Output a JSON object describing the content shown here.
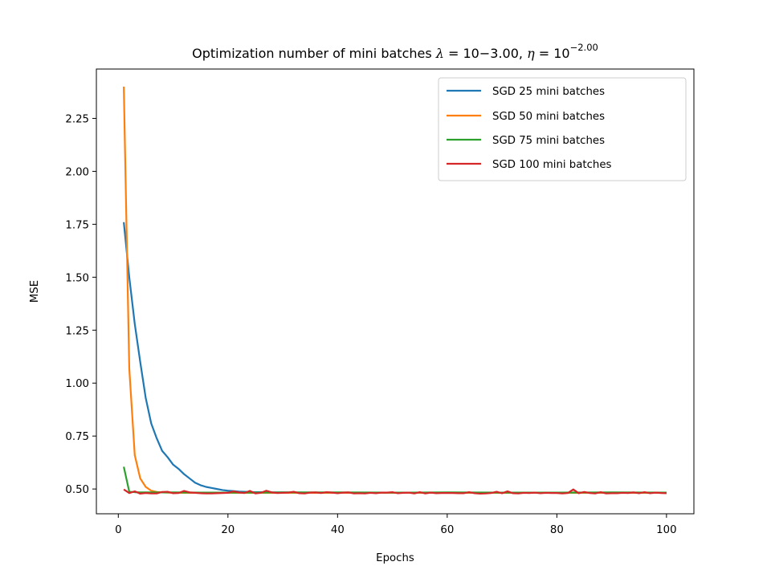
{
  "chart_data": {
    "type": "line",
    "title": {
      "prefix": "Optimization number of mini batches ",
      "lambda_symbol": "λ",
      "equals": " = ",
      "lambda_value": "10−3.00",
      "separator": ", ",
      "eta_symbol": "η",
      "eta_base": "10",
      "eta_exponent": "−2.00"
    },
    "xlabel": "Epochs",
    "ylabel": "MSE",
    "xlim": [
      -4.0,
      105.0
    ],
    "ylim": [
      0.383,
      2.483
    ],
    "xticks": [
      0,
      20,
      40,
      60,
      80,
      100
    ],
    "yticks": [
      0.5,
      0.75,
      1.0,
      1.25,
      1.5,
      1.75,
      2.0,
      2.25
    ],
    "ytick_labels": [
      "0.50",
      "0.75",
      "1.00",
      "1.25",
      "1.50",
      "1.75",
      "2.00",
      "2.25"
    ],
    "grid": false,
    "legend_position": "upper-right",
    "series": [
      {
        "name": "SGD 25 mini batches",
        "color": "#1f77b4",
        "x": [
          1,
          2,
          3,
          4,
          5,
          6,
          7,
          8,
          9,
          10,
          11,
          12,
          13,
          14,
          15,
          16,
          17,
          18,
          19,
          20,
          21,
          22,
          23,
          24,
          25,
          26,
          27,
          28,
          29,
          30,
          35,
          40,
          45,
          50,
          55,
          60,
          65,
          70,
          75,
          80,
          85,
          90,
          95,
          100
        ],
        "y": [
          1.76,
          1.5,
          1.28,
          1.1,
          0.93,
          0.81,
          0.74,
          0.68,
          0.65,
          0.615,
          0.595,
          0.57,
          0.55,
          0.53,
          0.518,
          0.51,
          0.505,
          0.5,
          0.495,
          0.492,
          0.49,
          0.488,
          0.487,
          0.486,
          0.485,
          0.485,
          0.484,
          0.484,
          0.484,
          0.484,
          0.483,
          0.483,
          0.483,
          0.483,
          0.483,
          0.483,
          0.483,
          0.483,
          0.483,
          0.483,
          0.483,
          0.483,
          0.483,
          0.483
        ]
      },
      {
        "name": "SGD 50 mini batches",
        "color": "#ff7f0e",
        "x": [
          1,
          2,
          3,
          4,
          5,
          6,
          7,
          8,
          9,
          10,
          12,
          15,
          20,
          25,
          30,
          40,
          50,
          60,
          70,
          80,
          90,
          100
        ],
        "y": [
          2.4,
          1.07,
          0.66,
          0.55,
          0.51,
          0.492,
          0.486,
          0.484,
          0.483,
          0.482,
          0.482,
          0.482,
          0.482,
          0.482,
          0.482,
          0.482,
          0.482,
          0.482,
          0.482,
          0.482,
          0.482,
          0.482
        ]
      },
      {
        "name": "SGD 75 mini batches",
        "color": "#2ca02c",
        "x": [
          1,
          2,
          3,
          4,
          5,
          6,
          8,
          10,
          15,
          20,
          25,
          30,
          40,
          50,
          60,
          70,
          80,
          90,
          100
        ],
        "y": [
          0.605,
          0.487,
          0.485,
          0.484,
          0.484,
          0.484,
          0.484,
          0.484,
          0.483,
          0.483,
          0.483,
          0.484,
          0.484,
          0.483,
          0.484,
          0.483,
          0.483,
          0.484,
          0.483
        ]
      },
      {
        "name": "SGD 100 mini batches",
        "color": "#d62728",
        "x": [
          1,
          2,
          3,
          4,
          5,
          6,
          7,
          8,
          9,
          10,
          11,
          12,
          13,
          14,
          15,
          16,
          17,
          18,
          19,
          20,
          21,
          22,
          23,
          24,
          25,
          26,
          27,
          28,
          29,
          30,
          31,
          32,
          33,
          34,
          35,
          36,
          37,
          38,
          39,
          40,
          41,
          42,
          43,
          44,
          45,
          46,
          47,
          48,
          49,
          50,
          51,
          52,
          53,
          54,
          55,
          56,
          57,
          58,
          59,
          60,
          61,
          62,
          63,
          64,
          65,
          66,
          67,
          68,
          69,
          70,
          71,
          72,
          73,
          74,
          75,
          76,
          77,
          78,
          79,
          80,
          81,
          82,
          83,
          84,
          85,
          86,
          87,
          88,
          89,
          90,
          91,
          92,
          93,
          94,
          95,
          96,
          97,
          98,
          99,
          100
        ],
        "y": [
          0.498,
          0.481,
          0.489,
          0.478,
          0.481,
          0.479,
          0.479,
          0.486,
          0.487,
          0.48,
          0.481,
          0.491,
          0.484,
          0.482,
          0.48,
          0.479,
          0.479,
          0.48,
          0.481,
          0.482,
          0.489,
          0.484,
          0.481,
          0.491,
          0.479,
          0.482,
          0.492,
          0.484,
          0.481,
          0.482,
          0.483,
          0.487,
          0.48,
          0.479,
          0.483,
          0.484,
          0.481,
          0.485,
          0.483,
          0.48,
          0.483,
          0.484,
          0.479,
          0.48,
          0.479,
          0.482,
          0.48,
          0.483,
          0.483,
          0.485,
          0.48,
          0.482,
          0.483,
          0.479,
          0.485,
          0.479,
          0.483,
          0.48,
          0.481,
          0.481,
          0.481,
          0.48,
          0.48,
          0.485,
          0.48,
          0.478,
          0.479,
          0.481,
          0.487,
          0.48,
          0.489,
          0.48,
          0.479,
          0.482,
          0.481,
          0.483,
          0.48,
          0.482,
          0.481,
          0.481,
          0.479,
          0.481,
          0.498,
          0.48,
          0.486,
          0.481,
          0.479,
          0.485,
          0.479,
          0.48,
          0.48,
          0.482,
          0.481,
          0.484,
          0.48,
          0.485,
          0.48,
          0.483,
          0.481,
          0.48
        ]
      }
    ]
  }
}
